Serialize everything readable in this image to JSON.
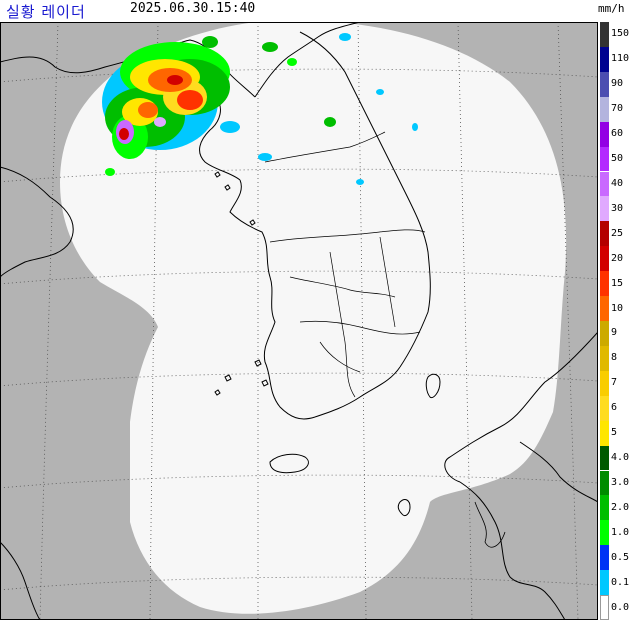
{
  "header": {
    "title": "실황 레이더",
    "timestamp": "2025.06.30.15:40",
    "unit": "mm/h"
  },
  "legend": {
    "levels": [
      {
        "label": "150",
        "color": "#333333"
      },
      {
        "label": "110",
        "color": "#000390"
      },
      {
        "label": "90",
        "color": "#4c4eb1"
      },
      {
        "label": "70",
        "color": "#b3b4de"
      },
      {
        "label": "60",
        "color": "#9300e4"
      },
      {
        "label": "50",
        "color": "#b329ff"
      },
      {
        "label": "40",
        "color": "#c969ff"
      },
      {
        "label": "30",
        "color": "#e0a9ff"
      },
      {
        "label": "25",
        "color": "#b40000"
      },
      {
        "label": "20",
        "color": "#d20000"
      },
      {
        "label": "15",
        "color": "#ff3200"
      },
      {
        "label": "10",
        "color": "#ff6600"
      },
      {
        "label": "9",
        "color": "#ccaa00"
      },
      {
        "label": "8",
        "color": "#e0b900"
      },
      {
        "label": "7",
        "color": "#f9cd00"
      },
      {
        "label": "6",
        "color": "#ffdc1f"
      },
      {
        "label": "5",
        "color": "#ffe600"
      },
      {
        "label": "4.0",
        "color": "#005a00"
      },
      {
        "label": "3.0",
        "color": "#008c00"
      },
      {
        "label": "2.0",
        "color": "#00be00"
      },
      {
        "label": "1.0",
        "color": "#00ff00"
      },
      {
        "label": "0.5",
        "color": "#0033f5"
      },
      {
        "label": "0.1",
        "color": "#00c8ff"
      },
      {
        "label": "0.0",
        "color": "#ffffff"
      }
    ]
  },
  "colors": {
    "outside": "#b3b3b3",
    "coverage": "#f7f7f7",
    "coast": "#000000",
    "grid": "#555555"
  }
}
